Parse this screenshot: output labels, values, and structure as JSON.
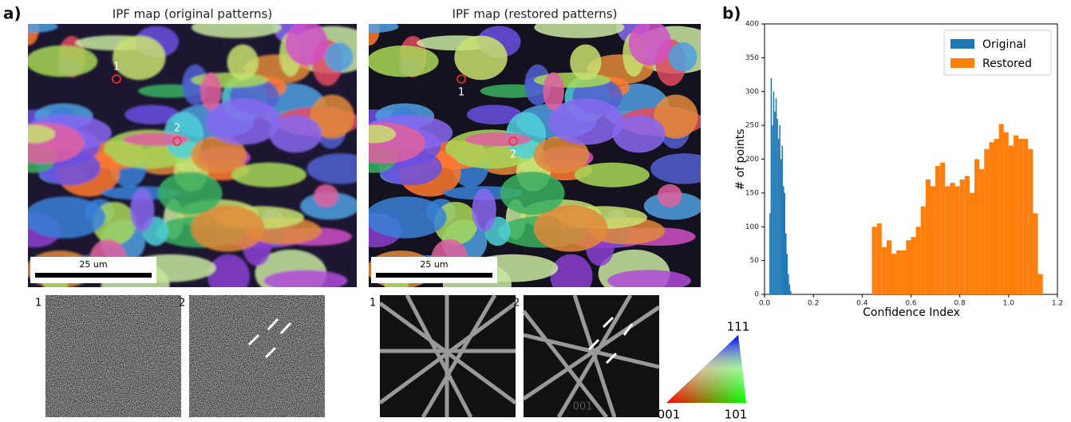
{
  "panel_a": {
    "label": "a)",
    "maps": [
      {
        "title": "IPF map (original patterns)",
        "scale_bar": "25 um",
        "points": [
          "1",
          "2"
        ]
      },
      {
        "title": "IPF map (restored patterns)",
        "scale_bar": "25 um",
        "points": [
          "1",
          "2"
        ]
      }
    ],
    "patterns": [
      "1",
      "2",
      "1",
      "2"
    ],
    "pattern_note": "001",
    "triangle": {
      "top": "111",
      "left": "001",
      "right": "101"
    }
  },
  "chart_data": {
    "type": "histogram",
    "label": "b)",
    "xlabel": "Confidence Index",
    "ylabel": "# of points",
    "xlim": [
      0,
      1.2
    ],
    "xticks": [
      {
        "value": 0,
        "label": "0.0"
      },
      0.2,
      0.4,
      0.6,
      0.8,
      {
        "value": 1,
        "label": "1.0"
      },
      1.2
    ],
    "ylim": [
      0,
      400
    ],
    "yticks": [
      0,
      50,
      100,
      150,
      200,
      250,
      300,
      350,
      400
    ],
    "legend": "upper right",
    "series": [
      {
        "name": "Original",
        "color": "#1f77b4",
        "bins": [
          0.02,
          0.025,
          0.03,
          0.035,
          0.04,
          0.045,
          0.05,
          0.055,
          0.06,
          0.065,
          0.07,
          0.075,
          0.08,
          0.085,
          0.09,
          0.095,
          0.1,
          0.105,
          0.11
        ],
        "values": [
          120,
          320,
          250,
          300,
          270,
          290,
          260,
          230,
          250,
          200,
          220,
          160,
          150,
          90,
          60,
          30,
          15,
          5
        ]
      },
      {
        "name": "Restored",
        "color": "#ff7f0e",
        "bins": [
          0.44,
          0.46,
          0.48,
          0.5,
          0.52,
          0.54,
          0.56,
          0.58,
          0.6,
          0.62,
          0.64,
          0.66,
          0.68,
          0.7,
          0.72,
          0.74,
          0.76,
          0.78,
          0.8,
          0.82,
          0.84,
          0.86,
          0.88,
          0.9,
          0.92,
          0.94,
          0.96,
          0.98,
          1.0,
          1.02,
          1.04,
          1.06,
          1.08,
          1.1,
          1.12,
          1.14
        ],
        "values": [
          100,
          105,
          70,
          80,
          60,
          65,
          65,
          80,
          85,
          100,
          130,
          170,
          160,
          190,
          195,
          160,
          165,
          160,
          170,
          175,
          150,
          200,
          185,
          215,
          225,
          230,
          252,
          240,
          220,
          235,
          230,
          230,
          215,
          120,
          30
        ]
      }
    ]
  }
}
